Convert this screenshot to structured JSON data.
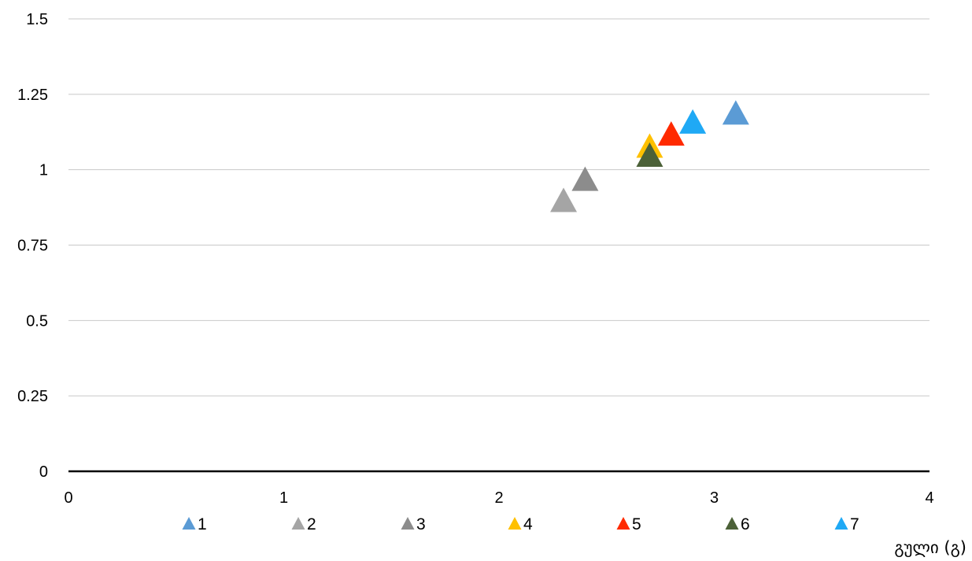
{
  "chart_data": {
    "type": "scatter",
    "marker": "triangle",
    "xlabel": "გული (გ)",
    "ylabel": "",
    "xlim": [
      0,
      4
    ],
    "ylim": [
      0,
      1.5
    ],
    "x_ticks": [
      "0",
      "1",
      "2",
      "3",
      "4"
    ],
    "y_ticks": [
      "0",
      "0.25",
      "0.5",
      "0.75",
      "1",
      "1.25",
      "1.5"
    ],
    "grid": "horizontal",
    "legend_position": "bottom",
    "series": [
      {
        "name": "1",
        "color": "#5b9bd5",
        "points": [
          {
            "x": 3.1,
            "y": 1.19
          }
        ]
      },
      {
        "name": "2",
        "color": "#a5a5a5",
        "points": [
          {
            "x": 2.3,
            "y": 0.9
          }
        ]
      },
      {
        "name": "3",
        "color": "#8c8c8c",
        "points": [
          {
            "x": 2.4,
            "y": 0.97
          }
        ]
      },
      {
        "name": "4",
        "color": "#ffc000",
        "points": [
          {
            "x": 2.7,
            "y": 1.08
          }
        ]
      },
      {
        "name": "5",
        "color": "#ff2a00",
        "points": [
          {
            "x": 2.8,
            "y": 1.12
          }
        ]
      },
      {
        "name": "6",
        "color": "#4c6138",
        "points": [
          {
            "x": 2.7,
            "y": 1.05
          }
        ]
      },
      {
        "name": "7",
        "color": "#1fa9f5",
        "points": [
          {
            "x": 2.9,
            "y": 1.16
          }
        ]
      }
    ]
  }
}
